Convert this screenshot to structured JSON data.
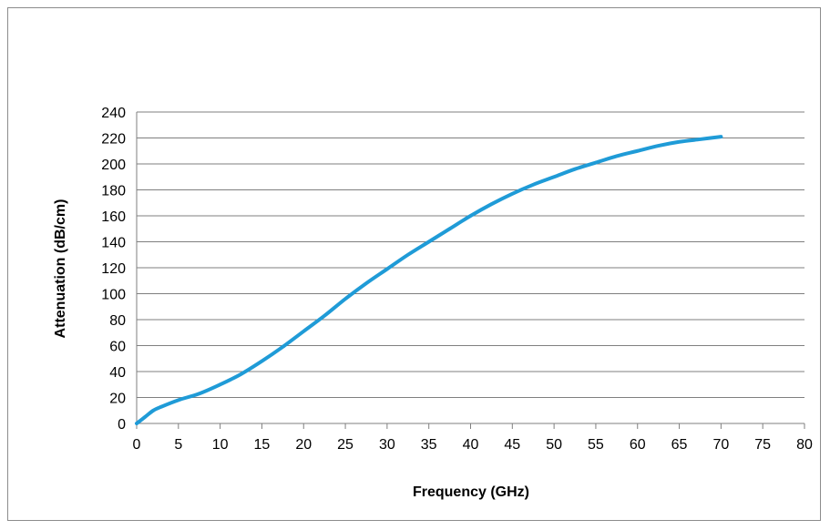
{
  "chart_data": {
    "type": "line",
    "title": "",
    "xlabel": "Frequency (GHz)",
    "ylabel": "Attenuation (dB/cm)",
    "xlim": [
      0,
      80
    ],
    "ylim": [
      0,
      240
    ],
    "x_ticks": [
      0,
      5,
      10,
      15,
      20,
      25,
      30,
      35,
      40,
      45,
      50,
      55,
      60,
      65,
      70,
      75,
      80
    ],
    "y_ticks": [
      0,
      20,
      40,
      60,
      80,
      100,
      120,
      140,
      160,
      180,
      200,
      220,
      240
    ],
    "grid": "horizontal",
    "legend": "none",
    "series": [
      {
        "color": "#1f9bd7",
        "x": [
          0,
          1,
          2,
          3,
          5,
          7.5,
          10,
          12.5,
          15,
          17.5,
          20,
          22.5,
          25,
          27.5,
          30,
          32.5,
          35,
          37.5,
          40,
          42.5,
          45,
          47.5,
          50,
          52.5,
          55,
          57.5,
          60,
          62.5,
          65,
          67.5,
          70
        ],
        "y": [
          0,
          5,
          10,
          13,
          18,
          23,
          30,
          38,
          48,
          59,
          71,
          83,
          96,
          108,
          119,
          130,
          140,
          150,
          160,
          169,
          177,
          184,
          190,
          196,
          201,
          206,
          210,
          214,
          217,
          219,
          221
        ]
      }
    ]
  }
}
